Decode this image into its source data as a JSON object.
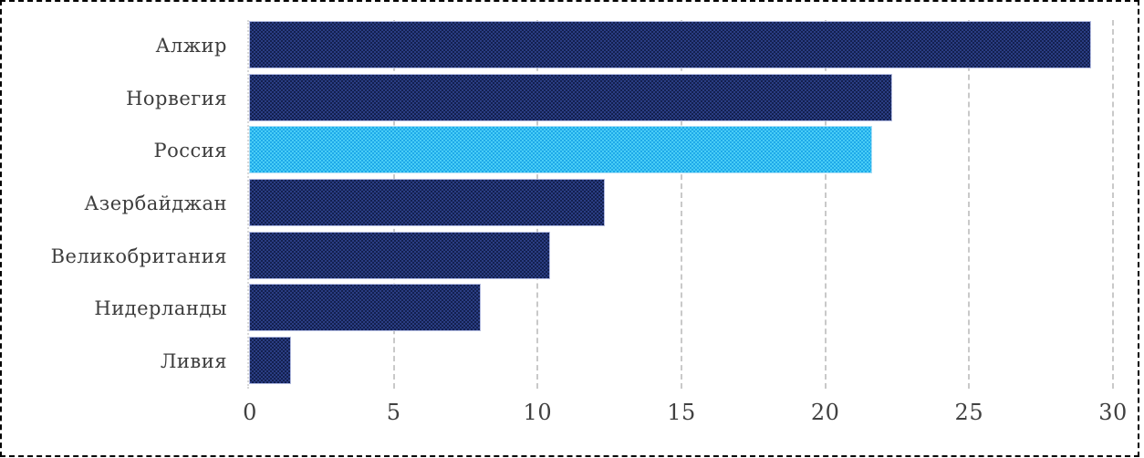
{
  "figure": {
    "kind": "selected chart image with dashed selection border",
    "background": "#ffffff",
    "border_color": "#000000"
  },
  "chart_data": {
    "type": "bar",
    "orientation": "horizontal",
    "title": "",
    "xlabel": "",
    "ylabel": "",
    "categories": [
      "Алжир",
      "Норвегия",
      "Россия",
      "Азербайджан",
      "Великобритания",
      "Нидерланды",
      "Ливия"
    ],
    "values": [
      29.2,
      22.3,
      21.6,
      12.3,
      10.4,
      8.0,
      1.4
    ],
    "highlight_category": "Россия",
    "highlight_index": 2,
    "xlim": [
      0,
      30
    ],
    "x_ticks": [
      "0",
      "5",
      "10",
      "15",
      "20",
      "25",
      "30"
    ],
    "grid": "vertical dashed gridlines at each tick",
    "legend_position": "none",
    "colors": {
      "bar": "#1e2f69",
      "highlight_bar": "#34bbf0",
      "gridline": "#c9c9c9",
      "zero_axis": "#d8d8d8",
      "category_text": "#3d3d3d",
      "tick_text": "#404040"
    }
  }
}
